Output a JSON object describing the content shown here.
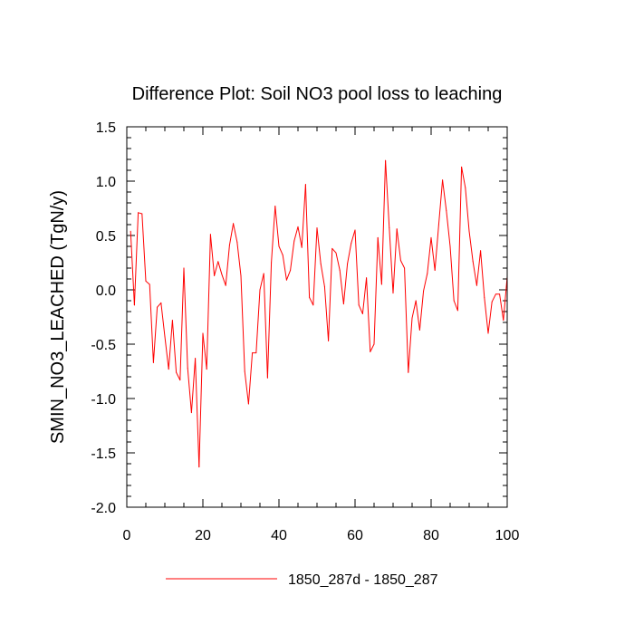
{
  "chart_data": {
    "type": "line",
    "title": "Difference Plot: Soil NO3 pool loss to leaching",
    "xlabel": "",
    "ylabel": "SMIN_NO3_LEACHED  (TgN/y)",
    "xlim": [
      0,
      100
    ],
    "ylim": [
      -2.0,
      1.5
    ],
    "xticks": [
      0,
      20,
      40,
      60,
      80,
      100
    ],
    "xtick_labels": [
      "0",
      "20",
      "40",
      "60",
      "80",
      "100"
    ],
    "yticks": [
      -2.0,
      -1.5,
      -1.0,
      -0.5,
      0.0,
      0.5,
      1.0,
      1.5
    ],
    "ytick_labels": [
      "-2.0",
      "-1.5",
      "-1.0",
      "-0.5",
      "0.0",
      "0.5",
      "1.0",
      "1.5"
    ],
    "grid": false,
    "legend_position": "bottom-center",
    "series": [
      {
        "name": "1850_287d - 1850_287",
        "color": "#ff0000",
        "x": [
          1,
          2,
          3,
          4,
          5,
          6,
          7,
          8,
          9,
          10,
          11,
          12,
          13,
          14,
          15,
          16,
          17,
          18,
          19,
          20,
          21,
          22,
          23,
          24,
          25,
          26,
          27,
          28,
          29,
          30,
          31,
          32,
          33,
          34,
          35,
          36,
          37,
          38,
          39,
          40,
          41,
          42,
          43,
          44,
          45,
          46,
          47,
          48,
          49,
          50,
          51,
          52,
          53,
          54,
          55,
          56,
          57,
          58,
          59,
          60,
          61,
          62,
          63,
          64,
          65,
          66,
          67,
          68,
          69,
          70,
          71,
          72,
          73,
          74,
          75,
          76,
          77,
          78,
          79,
          80,
          81,
          82,
          83,
          84,
          85,
          86,
          87,
          88,
          89,
          90,
          91,
          92,
          93,
          94,
          95,
          96,
          97,
          98,
          99,
          100
        ],
        "values": [
          0.54,
          -0.14,
          0.71,
          0.7,
          0.08,
          0.05,
          -0.67,
          -0.16,
          -0.12,
          -0.43,
          -0.73,
          -0.28,
          -0.76,
          -0.83,
          0.2,
          -0.72,
          -1.13,
          -0.63,
          -1.63,
          -0.4,
          -0.73,
          0.51,
          0.13,
          0.26,
          0.14,
          0.04,
          0.41,
          0.61,
          0.44,
          0.13,
          -0.75,
          -1.05,
          -0.58,
          -0.58,
          0.0,
          0.15,
          -0.81,
          0.25,
          0.77,
          0.4,
          0.32,
          0.09,
          0.18,
          0.45,
          0.58,
          0.39,
          0.97,
          -0.07,
          -0.14,
          0.57,
          0.24,
          0.03,
          -0.47,
          0.38,
          0.34,
          0.18,
          -0.13,
          0.24,
          0.43,
          0.55,
          -0.14,
          -0.22,
          0.11,
          -0.57,
          -0.5,
          0.48,
          0.05,
          1.19,
          0.57,
          -0.03,
          0.56,
          0.27,
          0.2,
          -0.76,
          -0.26,
          -0.1,
          -0.37,
          -0.01,
          0.15,
          0.48,
          0.18,
          0.6,
          1.01,
          0.73,
          0.4,
          -0.1,
          -0.19,
          1.13,
          0.94,
          0.54,
          0.26,
          0.04,
          0.36,
          -0.07,
          -0.4,
          -0.11,
          -0.04,
          -0.04,
          -0.28,
          0.12
        ]
      }
    ]
  }
}
